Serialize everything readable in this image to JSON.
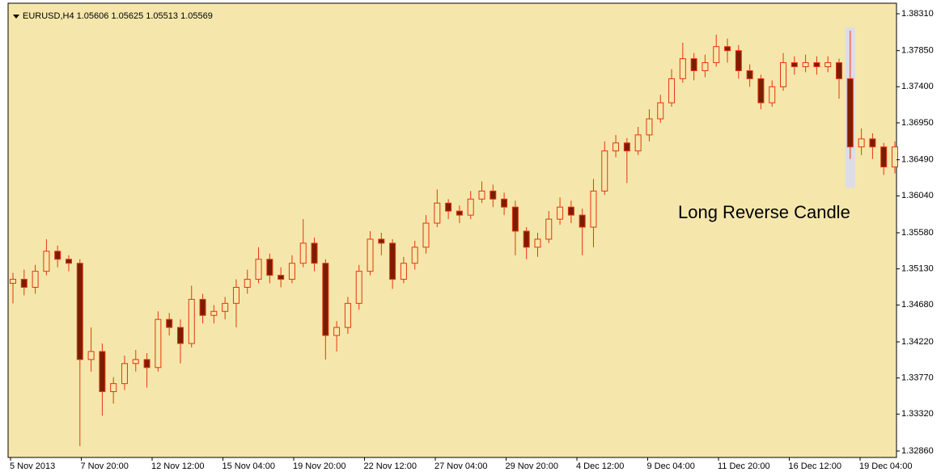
{
  "chart_data": {
    "type": "candlestick",
    "title": "EURUSD,H4  1.05606 1.05625 1.05513 1.05569",
    "annotation": "Long Reverse Candle",
    "highlight": 75,
    "background": "#f5e7ab",
    "up_color": "#f5e7ab",
    "down_color": "#7b1d04",
    "wick_color": "#e8350c",
    "xtick_labels": [
      "5 Nov 2013",
      "7 Nov 20:00",
      "12 Nov 12:00",
      "15 Nov 04:00",
      "19 Nov 20:00",
      "22 Nov 12:00",
      "27 Nov 04:00",
      "29 Nov 20:00",
      "4 Dec 12:00",
      "9 Dec 04:00",
      "11 Dec 20:00",
      "16 Dec 12:00",
      "19 Dec 04:00"
    ],
    "ylim": [
      1.3286,
      1.3831
    ],
    "yticks": [
      {
        "value": 1.3286,
        "label": "1.32860"
      },
      {
        "value": 1.3332,
        "label": "1.33320"
      },
      {
        "value": 1.3377,
        "label": "1.33770"
      },
      {
        "value": 1.3422,
        "label": "1.34220"
      },
      {
        "value": 1.3468,
        "label": "1.34680"
      },
      {
        "value": 1.3513,
        "label": "1.35130"
      },
      {
        "value": 1.3558,
        "label": "1.35580"
      },
      {
        "value": 1.3604,
        "label": "1.36040"
      },
      {
        "value": 1.3649,
        "label": "1.36490"
      },
      {
        "value": 1.3695,
        "label": "1.36950"
      },
      {
        "value": 1.374,
        "label": "1.37400"
      },
      {
        "value": 1.3785,
        "label": "1.37850"
      },
      {
        "value": 1.3831,
        "label": "1.38310"
      }
    ],
    "open": [
      1.3495,
      1.35,
      1.349,
      1.351,
      1.3535,
      1.3525,
      1.352,
      1.34,
      1.341,
      1.336,
      1.337,
      1.3395,
      1.34,
      1.339,
      1.345,
      1.344,
      1.342,
      1.3475,
      1.3455,
      1.346,
      1.347,
      1.349,
      1.35,
      1.3525,
      1.3505,
      1.35,
      1.352,
      1.3545,
      1.352,
      1.343,
      1.344,
      1.347,
      1.351,
      1.355,
      1.3545,
      1.35,
      1.352,
      1.354,
      1.357,
      1.3595,
      1.3585,
      1.358,
      1.36,
      1.361,
      1.36,
      1.359,
      1.356,
      1.354,
      1.355,
      1.3575,
      1.359,
      1.358,
      1.3565,
      1.361,
      1.366,
      1.367,
      1.366,
      1.368,
      1.37,
      1.372,
      1.375,
      1.3775,
      1.376,
      1.377,
      1.379,
      1.3785,
      1.376,
      1.375,
      1.372,
      1.374,
      1.377,
      1.3765,
      1.377,
      1.3765,
      1.377,
      1.375,
      1.3665,
      1.3675,
      1.3665,
      1.364
    ],
    "high": [
      1.3508,
      1.3512,
      1.3518,
      1.355,
      1.3542,
      1.353,
      1.3525,
      1.344,
      1.342,
      1.3378,
      1.3405,
      1.3412,
      1.3408,
      1.346,
      1.3458,
      1.345,
      1.3492,
      1.3482,
      1.3468,
      1.3478,
      1.35,
      1.3512,
      1.354,
      1.3532,
      1.3515,
      1.353,
      1.3575,
      1.3552,
      1.3525,
      1.3448,
      1.3478,
      1.3518,
      1.356,
      1.3558,
      1.355,
      1.3528,
      1.3548,
      1.358,
      1.3612,
      1.36,
      1.3592,
      1.361,
      1.3622,
      1.3618,
      1.3608,
      1.3598,
      1.3565,
      1.3558,
      1.3585,
      1.3602,
      1.3598,
      1.3588,
      1.3625,
      1.3672,
      1.368,
      1.3676,
      1.369,
      1.3712,
      1.373,
      1.3762,
      1.3795,
      1.3782,
      1.378,
      1.3805,
      1.38,
      1.3792,
      1.3768,
      1.3755,
      1.3748,
      1.3782,
      1.3778,
      1.378,
      1.3778,
      1.3778,
      1.3775,
      1.381,
      1.3688,
      1.3682,
      1.367,
      1.3672
    ],
    "low": [
      1.347,
      1.348,
      1.3482,
      1.3505,
      1.3515,
      1.351,
      1.3292,
      1.3385,
      1.333,
      1.3345,
      1.3362,
      1.3385,
      1.3365,
      1.3385,
      1.343,
      1.3395,
      1.3415,
      1.3445,
      1.3445,
      1.345,
      1.344,
      1.3482,
      1.3495,
      1.3495,
      1.349,
      1.3495,
      1.3515,
      1.351,
      1.34,
      1.341,
      1.3432,
      1.3462,
      1.3505,
      1.353,
      1.3488,
      1.3495,
      1.3512,
      1.3532,
      1.3565,
      1.3575,
      1.357,
      1.3575,
      1.3595,
      1.359,
      1.358,
      1.353,
      1.3525,
      1.3528,
      1.3545,
      1.3568,
      1.357,
      1.353,
      1.354,
      1.3605,
      1.3652,
      1.362,
      1.3655,
      1.3672,
      1.3695,
      1.3715,
      1.3745,
      1.3748,
      1.3752,
      1.3765,
      1.377,
      1.375,
      1.374,
      1.3712,
      1.3715,
      1.3735,
      1.3755,
      1.3758,
      1.3755,
      1.3758,
      1.3725,
      1.365,
      1.3655,
      1.365,
      1.363,
      1.3632
    ],
    "close": [
      1.35,
      1.349,
      1.351,
      1.3535,
      1.3525,
      1.352,
      1.34,
      1.341,
      1.336,
      1.337,
      1.3395,
      1.34,
      1.339,
      1.345,
      1.344,
      1.342,
      1.3475,
      1.3455,
      1.346,
      1.347,
      1.349,
      1.35,
      1.3525,
      1.3505,
      1.35,
      1.352,
      1.3545,
      1.352,
      1.343,
      1.344,
      1.347,
      1.351,
      1.355,
      1.3545,
      1.35,
      1.352,
      1.354,
      1.357,
      1.3595,
      1.3585,
      1.358,
      1.36,
      1.361,
      1.36,
      1.359,
      1.356,
      1.354,
      1.355,
      1.3575,
      1.359,
      1.358,
      1.3565,
      1.361,
      1.366,
      1.367,
      1.366,
      1.368,
      1.37,
      1.372,
      1.375,
      1.3775,
      1.376,
      1.377,
      1.379,
      1.3785,
      1.376,
      1.375,
      1.372,
      1.374,
      1.377,
      1.3765,
      1.377,
      1.3765,
      1.377,
      1.375,
      1.3665,
      1.3675,
      1.3665,
      1.364,
      1.3665
    ]
  }
}
